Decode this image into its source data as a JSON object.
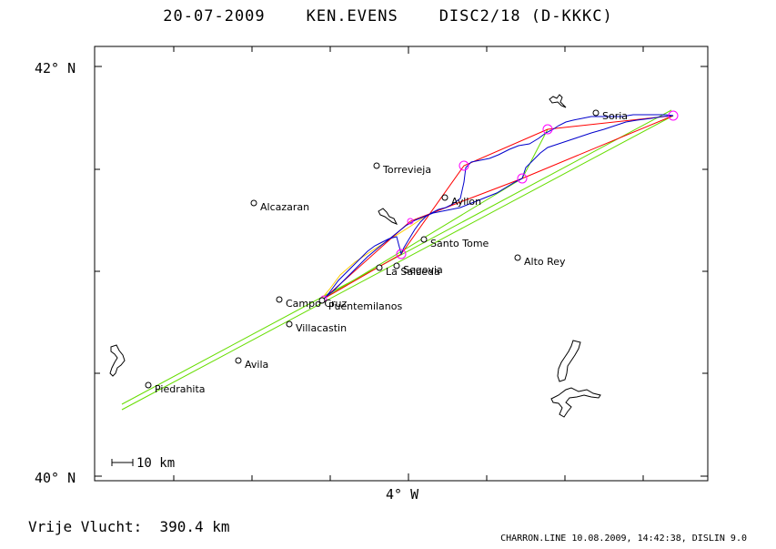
{
  "header": {
    "date": "20-07-2009",
    "pilot": "KEN.EVENS",
    "glider": "DISC2/18 (D-KKKC)"
  },
  "axes": {
    "lat_top": "42° N",
    "lat_bottom": "40° N",
    "lon_center": "4° W"
  },
  "scale_bar": {
    "label": "10 km"
  },
  "towns": [
    {
      "name": "Soria"
    },
    {
      "name": "Torrevieja"
    },
    {
      "name": "Alcazaran"
    },
    {
      "name": "Ayllon"
    },
    {
      "name": "Santo Tome"
    },
    {
      "name": "Alto Rey"
    },
    {
      "name": "La Salceda"
    },
    {
      "name": "Segovia"
    },
    {
      "name": "Campo Cruz"
    },
    {
      "name": "Puentemilanos"
    },
    {
      "name": "Villacastin"
    },
    {
      "name": "Avila"
    },
    {
      "name": "Piedrahita"
    }
  ],
  "footer": {
    "distance_label": "Vrije Vlucht:",
    "distance_value": "390.4 km",
    "generator": "CHARRON.LINE 10.08.2009, 14:42:38, DISLIN 9.0"
  },
  "colors": {
    "track": "#0000cc",
    "task_line": "#ff0000",
    "optimized_line": "#66dd00",
    "turnpoint": "#ff00ff",
    "start_leg": "#ffcc00"
  }
}
